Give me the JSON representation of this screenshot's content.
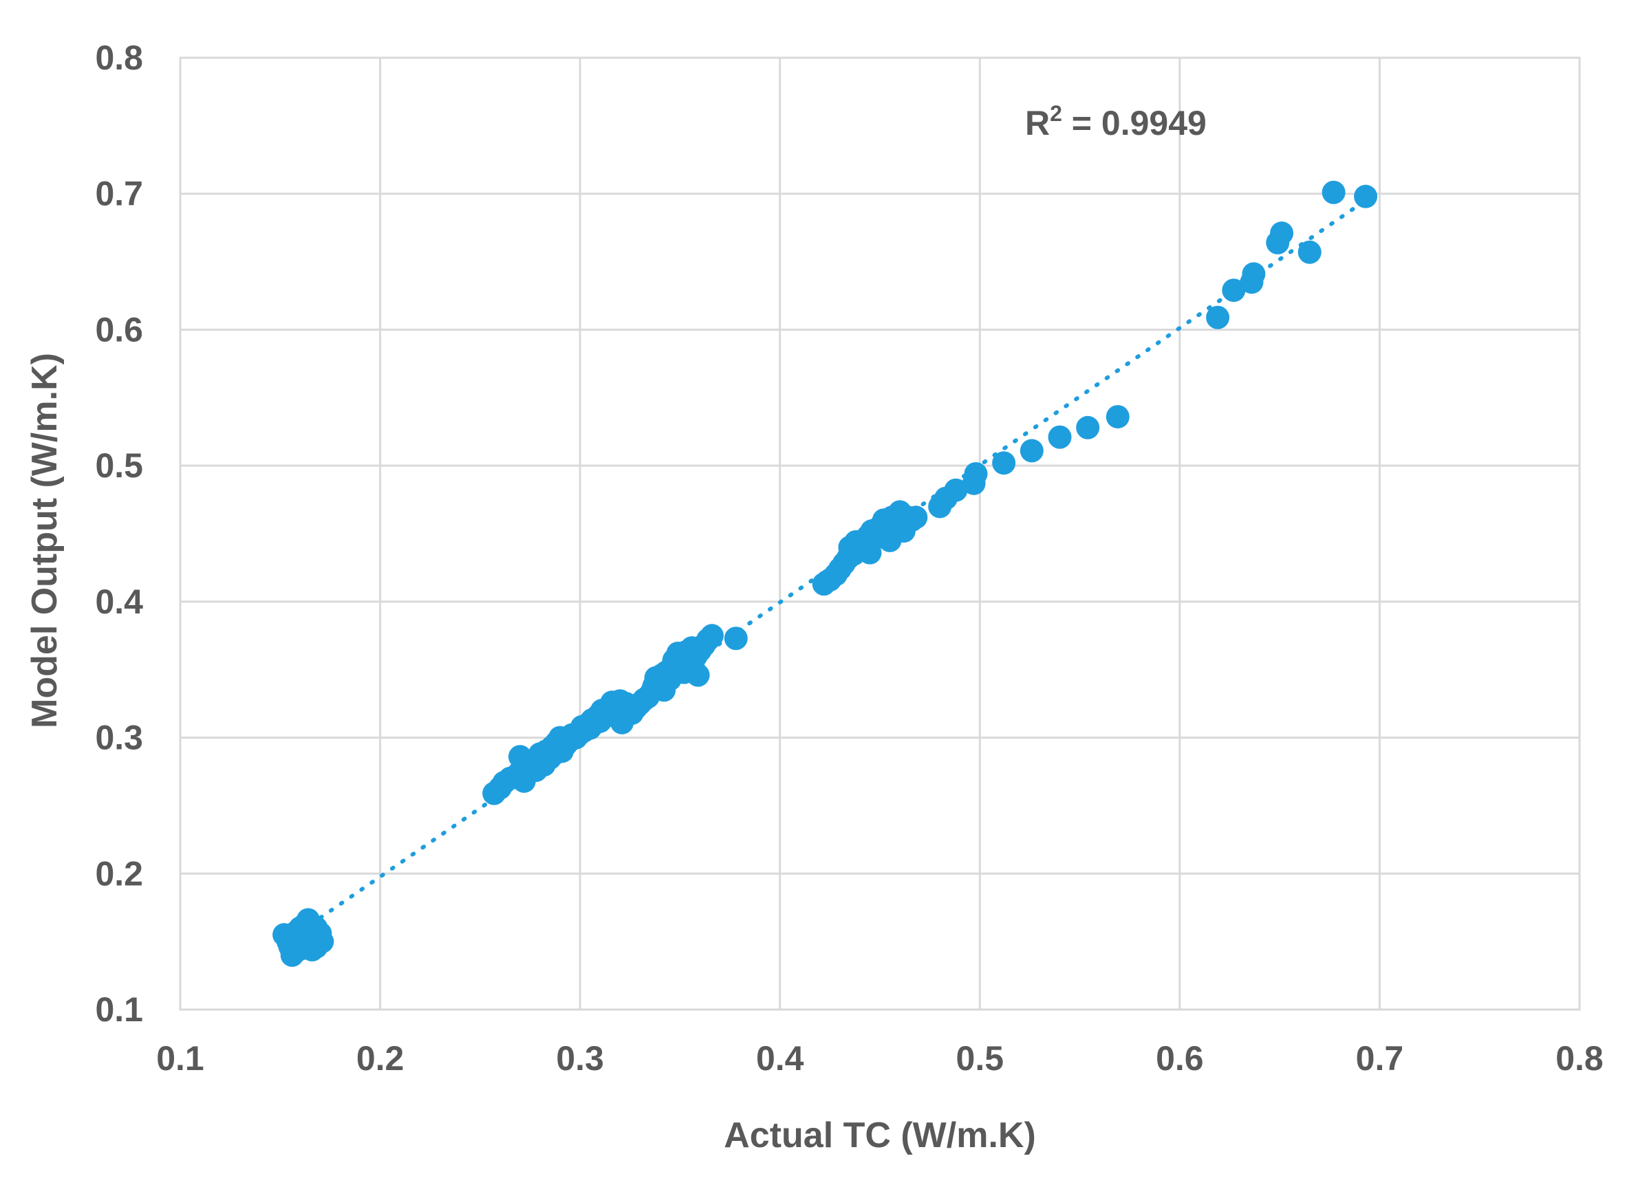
{
  "chart_data": {
    "type": "scatter",
    "title": "",
    "xlabel": "Actual TC (W/m.K)",
    "ylabel": "Model Output (W/m.K)",
    "xlim": [
      0.1,
      0.8
    ],
    "ylim": [
      0.1,
      0.8
    ],
    "x_ticks": [
      0.1,
      0.2,
      0.3,
      0.4,
      0.5,
      0.6,
      0.7,
      0.8
    ],
    "y_ticks": [
      0.1,
      0.2,
      0.3,
      0.4,
      0.5,
      0.6,
      0.7,
      0.8
    ],
    "x_tick_labels": [
      "0.1",
      "0.2",
      "0.3",
      "0.4",
      "0.5",
      "0.6",
      "0.7",
      "0.8"
    ],
    "y_tick_labels": [
      "0.1",
      "0.2",
      "0.3",
      "0.4",
      "0.5",
      "0.6",
      "0.7",
      "0.8"
    ],
    "grid": true,
    "annotation": {
      "prefix": "R",
      "superscript": "2",
      "suffix": " = 0.9949"
    },
    "trendline": {
      "type": "linear",
      "style": "dotted",
      "x_range": [
        0.16,
        0.695
      ]
    },
    "colors": {
      "points": "#1f9ede",
      "trendline": "#1f9ede",
      "grid": "#d9d9d9",
      "text": "#595959"
    },
    "series": [
      {
        "name": "Model Output",
        "points": [
          [
            0.152,
            0.155
          ],
          [
            0.154,
            0.15
          ],
          [
            0.155,
            0.146
          ],
          [
            0.156,
            0.14
          ],
          [
            0.157,
            0.152
          ],
          [
            0.158,
            0.157
          ],
          [
            0.159,
            0.148
          ],
          [
            0.16,
            0.153
          ],
          [
            0.16,
            0.16
          ],
          [
            0.161,
            0.145
          ],
          [
            0.162,
            0.155
          ],
          [
            0.162,
            0.162
          ],
          [
            0.163,
            0.15
          ],
          [
            0.163,
            0.158
          ],
          [
            0.164,
            0.166
          ],
          [
            0.165,
            0.148
          ],
          [
            0.165,
            0.156
          ],
          [
            0.166,
            0.162
          ],
          [
            0.167,
            0.152
          ],
          [
            0.168,
            0.16
          ],
          [
            0.168,
            0.146
          ],
          [
            0.17,
            0.156
          ],
          [
            0.171,
            0.15
          ],
          [
            0.158,
            0.143
          ],
          [
            0.166,
            0.144
          ],
          [
            0.257,
            0.259
          ],
          [
            0.26,
            0.263
          ],
          [
            0.262,
            0.267
          ],
          [
            0.265,
            0.27
          ],
          [
            0.268,
            0.272
          ],
          [
            0.27,
            0.275
          ],
          [
            0.27,
            0.286
          ],
          [
            0.272,
            0.268
          ],
          [
            0.274,
            0.278
          ],
          [
            0.276,
            0.281
          ],
          [
            0.278,
            0.276
          ],
          [
            0.279,
            0.284
          ],
          [
            0.28,
            0.288
          ],
          [
            0.282,
            0.28
          ],
          [
            0.283,
            0.29
          ],
          [
            0.285,
            0.285
          ],
          [
            0.286,
            0.293
          ],
          [
            0.287,
            0.288
          ],
          [
            0.288,
            0.296
          ],
          [
            0.289,
            0.292
          ],
          [
            0.29,
            0.3
          ],
          [
            0.291,
            0.29
          ],
          [
            0.293,
            0.295
          ],
          [
            0.295,
            0.298
          ],
          [
            0.296,
            0.302
          ],
          [
            0.298,
            0.3
          ],
          [
            0.3,
            0.303
          ],
          [
            0.301,
            0.308
          ],
          [
            0.302,
            0.305
          ],
          [
            0.304,
            0.31
          ],
          [
            0.305,
            0.307
          ],
          [
            0.306,
            0.313
          ],
          [
            0.308,
            0.311
          ],
          [
            0.309,
            0.316
          ],
          [
            0.31,
            0.312
          ],
          [
            0.311,
            0.32
          ],
          [
            0.312,
            0.315
          ],
          [
            0.313,
            0.318
          ],
          [
            0.315,
            0.322
          ],
          [
            0.316,
            0.326
          ],
          [
            0.317,
            0.318
          ],
          [
            0.318,
            0.323
          ],
          [
            0.319,
            0.316
          ],
          [
            0.32,
            0.327
          ],
          [
            0.321,
            0.311
          ],
          [
            0.322,
            0.32
          ],
          [
            0.323,
            0.325
          ],
          [
            0.325,
            0.322
          ],
          [
            0.326,
            0.318
          ],
          [
            0.328,
            0.322
          ],
          [
            0.33,
            0.325
          ],
          [
            0.332,
            0.328
          ],
          [
            0.334,
            0.33
          ],
          [
            0.336,
            0.334
          ],
          [
            0.337,
            0.338
          ],
          [
            0.338,
            0.344
          ],
          [
            0.34,
            0.34
          ],
          [
            0.341,
            0.346
          ],
          [
            0.342,
            0.335
          ],
          [
            0.343,
            0.348
          ],
          [
            0.345,
            0.343
          ],
          [
            0.346,
            0.352
          ],
          [
            0.347,
            0.357
          ],
          [
            0.348,
            0.348
          ],
          [
            0.349,
            0.362
          ],
          [
            0.35,
            0.353
          ],
          [
            0.351,
            0.358
          ],
          [
            0.352,
            0.348
          ],
          [
            0.353,
            0.363
          ],
          [
            0.355,
            0.356
          ],
          [
            0.356,
            0.366
          ],
          [
            0.357,
            0.35
          ],
          [
            0.358,
            0.36
          ],
          [
            0.359,
            0.346
          ],
          [
            0.36,
            0.364
          ],
          [
            0.362,
            0.368
          ],
          [
            0.364,
            0.372
          ],
          [
            0.366,
            0.375
          ],
          [
            0.378,
            0.373
          ],
          [
            0.422,
            0.413
          ],
          [
            0.425,
            0.416
          ],
          [
            0.428,
            0.42
          ],
          [
            0.43,
            0.424
          ],
          [
            0.432,
            0.428
          ],
          [
            0.434,
            0.432
          ],
          [
            0.435,
            0.44
          ],
          [
            0.437,
            0.435
          ],
          [
            0.438,
            0.444
          ],
          [
            0.44,
            0.438
          ],
          [
            0.442,
            0.445
          ],
          [
            0.444,
            0.448
          ],
          [
            0.445,
            0.436
          ],
          [
            0.446,
            0.452
          ],
          [
            0.448,
            0.447
          ],
          [
            0.45,
            0.455
          ],
          [
            0.451,
            0.451
          ],
          [
            0.452,
            0.46
          ],
          [
            0.454,
            0.456
          ],
          [
            0.455,
            0.445
          ],
          [
            0.456,
            0.462
          ],
          [
            0.458,
            0.458
          ],
          [
            0.46,
            0.466
          ],
          [
            0.462,
            0.452
          ],
          [
            0.464,
            0.462
          ],
          [
            0.466,
            0.46
          ],
          [
            0.468,
            0.462
          ],
          [
            0.48,
            0.47
          ],
          [
            0.483,
            0.476
          ],
          [
            0.488,
            0.482
          ],
          [
            0.497,
            0.487
          ],
          [
            0.498,
            0.494
          ],
          [
            0.512,
            0.502
          ],
          [
            0.526,
            0.511
          ],
          [
            0.54,
            0.521
          ],
          [
            0.554,
            0.528
          ],
          [
            0.569,
            0.536
          ],
          [
            0.619,
            0.609
          ],
          [
            0.627,
            0.629
          ],
          [
            0.636,
            0.635
          ],
          [
            0.637,
            0.641
          ],
          [
            0.649,
            0.664
          ],
          [
            0.651,
            0.671
          ],
          [
            0.665,
            0.657
          ],
          [
            0.677,
            0.701
          ],
          [
            0.693,
            0.698
          ]
        ]
      }
    ]
  }
}
